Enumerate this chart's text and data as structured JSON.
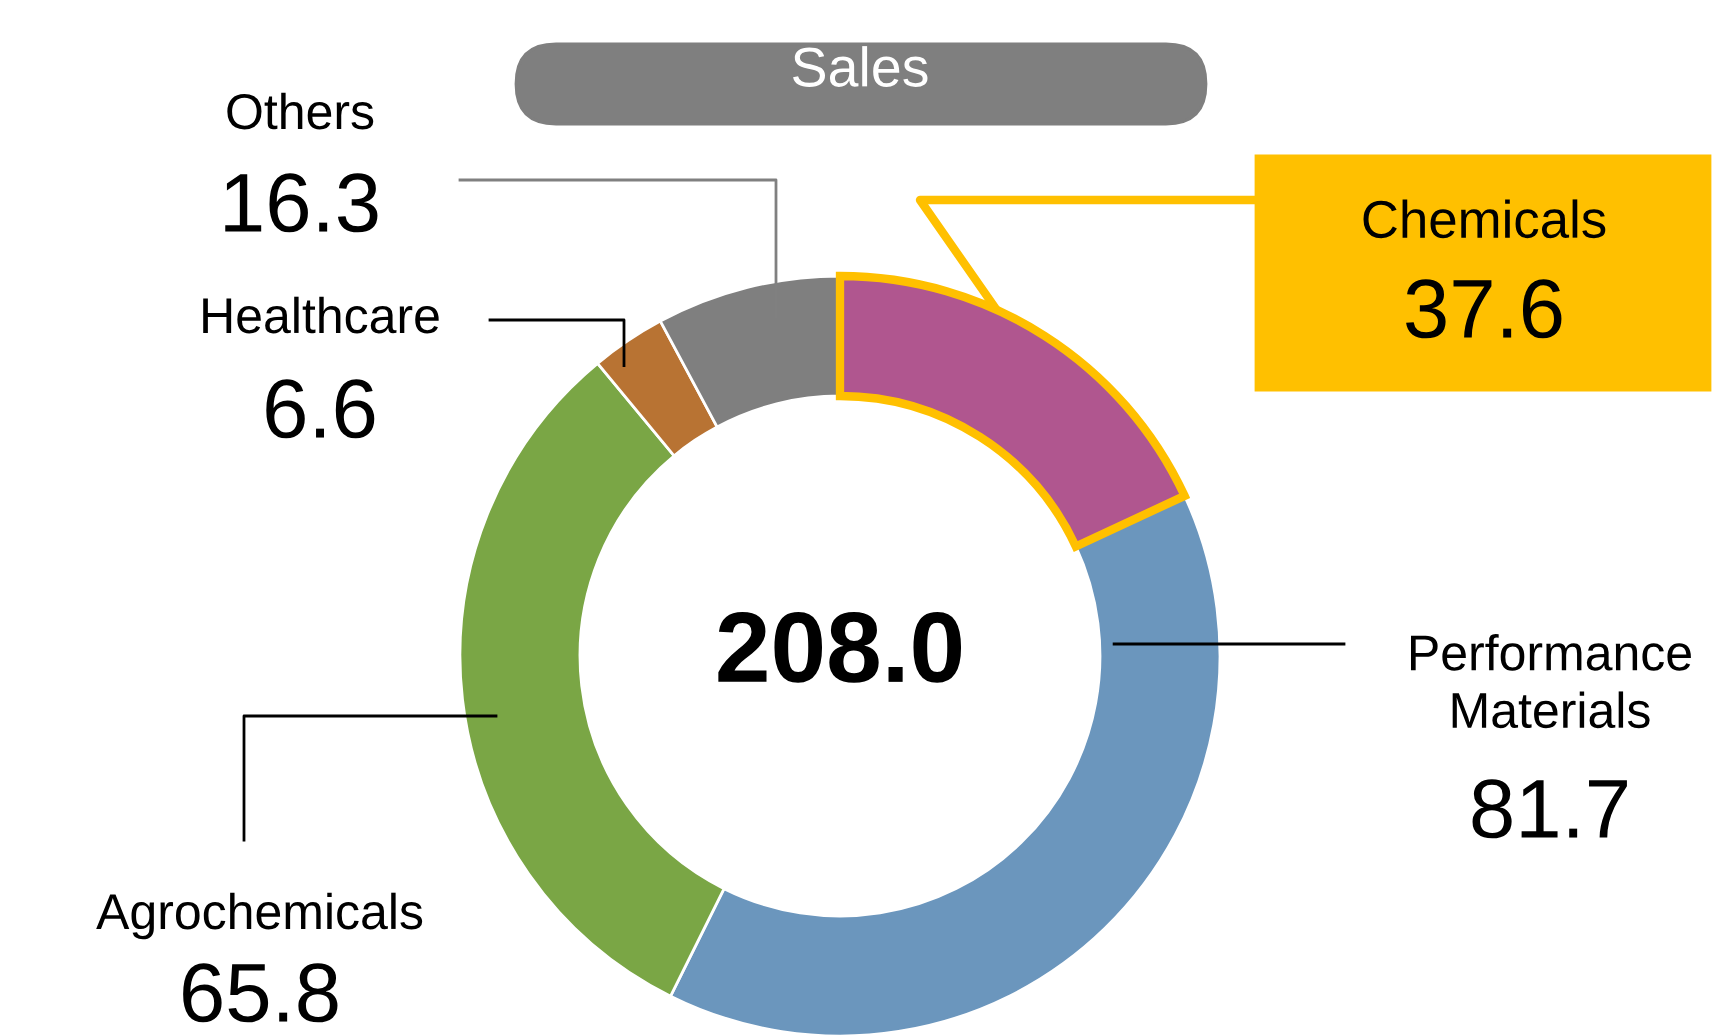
{
  "chart_data": {
    "type": "donut",
    "title": "Sales",
    "categories": [
      "Chemicals",
      "Performance Materials",
      "Agrochemicals",
      "Healthcare",
      "Others"
    ],
    "values": [
      37.6,
      81.7,
      65.8,
      6.6,
      16.3
    ],
    "colors": [
      "#b0568f",
      "#6b96bd",
      "#7aa645",
      "#b87333",
      "#7f7f7f"
    ],
    "annotations": [
      "208.0"
    ],
    "data_labels": true,
    "legend": false
  }
}
